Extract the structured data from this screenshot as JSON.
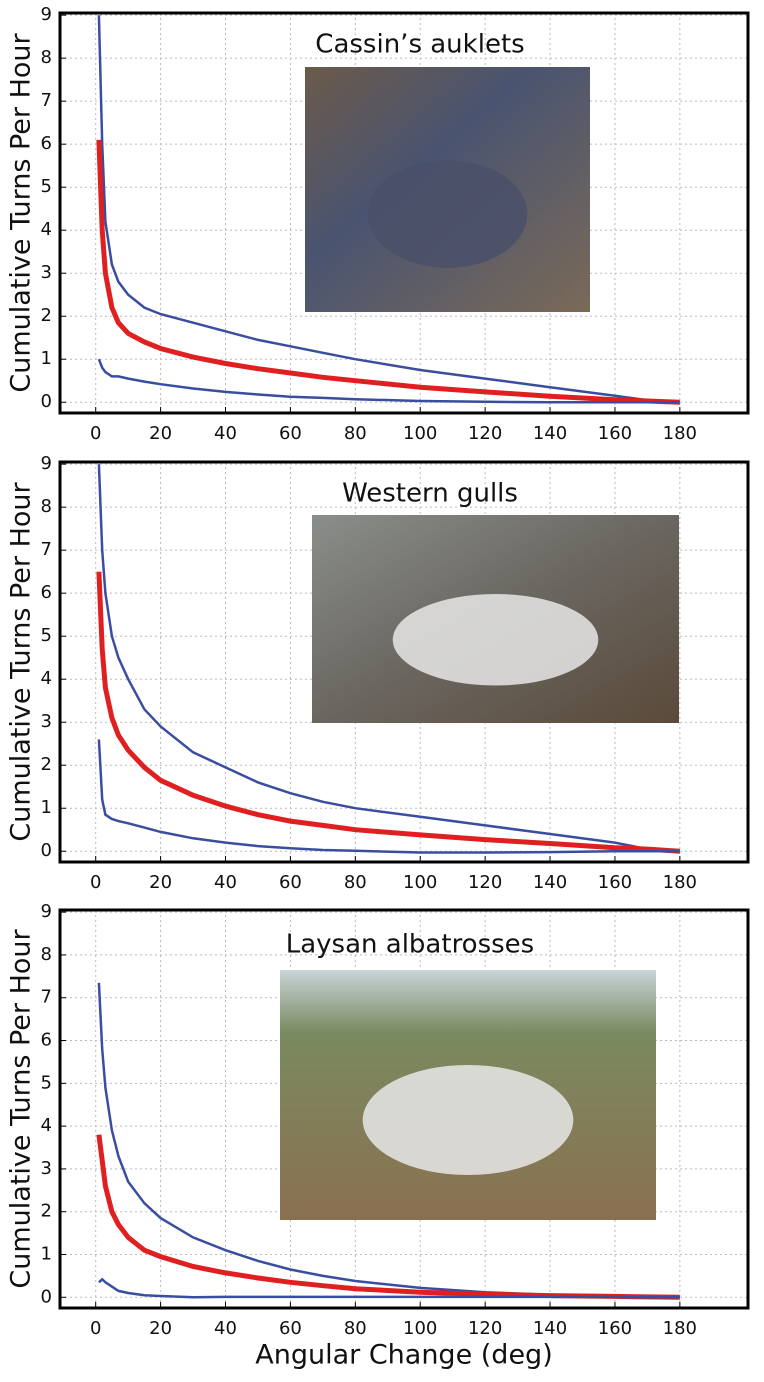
{
  "chart_data": [
    {
      "type": "line",
      "title": "Cassin’s auklets",
      "y_label": "Cumulative Turns Per Hour",
      "x": [
        1,
        2,
        3,
        5,
        7,
        10,
        15,
        20,
        30,
        40,
        50,
        60,
        70,
        80,
        100,
        120,
        140,
        160,
        170,
        180
      ],
      "series": [
        {
          "color": "#3a4ea0",
          "values": [
            9.0,
            6.0,
            4.2,
            3.2,
            2.8,
            2.5,
            2.2,
            2.05,
            1.85,
            1.65,
            1.45,
            1.3,
            1.15,
            1.0,
            0.75,
            0.55,
            0.35,
            0.15,
            0.05,
            0
          ]
        },
        {
          "color": "#e02020",
          "values": [
            6.1,
            4.0,
            3.0,
            2.2,
            1.85,
            1.6,
            1.4,
            1.25,
            1.05,
            0.9,
            0.78,
            0.68,
            0.58,
            0.5,
            0.35,
            0.24,
            0.14,
            0.06,
            0.03,
            0
          ]
        },
        {
          "color": "#3a4ea0",
          "values": [
            1.0,
            0.8,
            0.7,
            0.6,
            0.6,
            0.55,
            0.48,
            0.42,
            0.32,
            0.24,
            0.18,
            0.13,
            0.1,
            0.07,
            0.03,
            0.01,
            0,
            0,
            0,
            0
          ]
        }
      ],
      "xlim": [
        -11,
        201
      ],
      "ylim": [
        -0.25,
        9.05
      ],
      "xticks": [
        0,
        20,
        40,
        60,
        80,
        100,
        120,
        140,
        160,
        180
      ],
      "yticks": [
        0,
        1,
        2,
        3,
        4,
        5,
        6,
        7,
        8,
        9
      ],
      "grid": true
    },
    {
      "type": "line",
      "title": "Western gulls",
      "y_label": "Cumulative Turns Per Hour",
      "x": [
        1,
        2,
        3,
        5,
        7,
        10,
        15,
        20,
        30,
        40,
        50,
        60,
        70,
        80,
        100,
        120,
        140,
        160,
        170,
        180
      ],
      "series": [
        {
          "color": "#3a4ea0",
          "values": [
            9.0,
            7.0,
            6.0,
            5.0,
            4.5,
            4.0,
            3.3,
            2.9,
            2.3,
            1.95,
            1.6,
            1.35,
            1.15,
            1.0,
            0.8,
            0.6,
            0.4,
            0.2,
            0.05,
            0
          ]
        },
        {
          "color": "#e02020",
          "values": [
            6.5,
            4.7,
            3.8,
            3.1,
            2.7,
            2.35,
            1.95,
            1.65,
            1.3,
            1.05,
            0.85,
            0.7,
            0.6,
            0.5,
            0.38,
            0.27,
            0.18,
            0.08,
            0.05,
            0
          ]
        },
        {
          "color": "#3a4ea0",
          "values": [
            2.6,
            1.2,
            0.85,
            0.75,
            0.7,
            0.65,
            0.55,
            0.45,
            0.3,
            0.2,
            0.12,
            0.07,
            0.03,
            0.01,
            -0.03,
            -0.03,
            -0.02,
            0,
            0,
            0
          ]
        }
      ],
      "xlim": [
        -11,
        201
      ],
      "ylim": [
        -0.25,
        9.05
      ],
      "xticks": [
        0,
        20,
        40,
        60,
        80,
        100,
        120,
        140,
        160,
        180
      ],
      "yticks": [
        0,
        1,
        2,
        3,
        4,
        5,
        6,
        7,
        8,
        9
      ],
      "grid": true
    },
    {
      "type": "line",
      "title": "Laysan albatrosses",
      "y_label": "Cumulative Turns Per Hour",
      "x_label": "Angular Change (deg)",
      "x": [
        1,
        2,
        3,
        5,
        7,
        10,
        15,
        20,
        30,
        40,
        50,
        60,
        70,
        80,
        100,
        120,
        140,
        160,
        170,
        180
      ],
      "series": [
        {
          "color": "#3a4ea0",
          "values": [
            7.35,
            5.8,
            4.9,
            3.9,
            3.3,
            2.7,
            2.2,
            1.85,
            1.4,
            1.1,
            0.85,
            0.65,
            0.5,
            0.38,
            0.22,
            0.12,
            0.06,
            0.02,
            0.01,
            0
          ]
        },
        {
          "color": "#e02020",
          "values": [
            3.8,
            3.2,
            2.6,
            2.0,
            1.7,
            1.4,
            1.1,
            0.95,
            0.72,
            0.57,
            0.45,
            0.35,
            0.27,
            0.2,
            0.12,
            0.07,
            0.04,
            0.02,
            0.01,
            0
          ]
        },
        {
          "color": "#3a4ea0",
          "values": [
            0.35,
            0.42,
            0.35,
            0.25,
            0.15,
            0.1,
            0.05,
            0.03,
            0,
            0.01,
            0.01,
            0.01,
            0.01,
            0.01,
            0.01,
            0.01,
            0.01,
            0.01,
            0,
            0
          ]
        }
      ],
      "xlim": [
        -11,
        201
      ],
      "ylim": [
        -0.25,
        9.05
      ],
      "xticks": [
        0,
        20,
        40,
        60,
        80,
        100,
        120,
        140,
        160,
        180
      ],
      "yticks": [
        0,
        1,
        2,
        3,
        4,
        5,
        6,
        7,
        8,
        9
      ],
      "grid": true
    }
  ]
}
